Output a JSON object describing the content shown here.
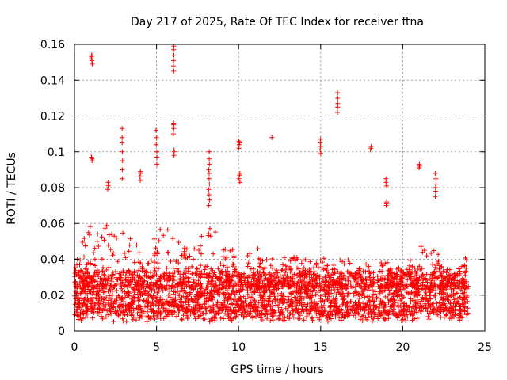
{
  "chart_data": {
    "type": "scatter",
    "title": "Day 217 of 2025, Rate Of TEC Index for receiver ftna",
    "xlabel": "GPS time / hours",
    "ylabel": "ROTI / TECUs",
    "xlim": [
      0,
      25
    ],
    "ylim": [
      0,
      0.16
    ],
    "x_ticks": [
      0,
      5,
      10,
      15,
      20,
      25
    ],
    "x_tick_labels": [
      "0",
      "5",
      "10",
      "15",
      "20",
      "25"
    ],
    "y_ticks": [
      0,
      0.02,
      0.04,
      0.06,
      0.08,
      0.1,
      0.12,
      0.14,
      0.16
    ],
    "y_tick_labels": [
      "0",
      "0.02",
      "0.04",
      "0.06",
      "0.08",
      "0.1",
      "0.12",
      "0.14",
      "0.16"
    ],
    "grid": true,
    "marker": "+",
    "color": "#ff0000",
    "bulk_band": {
      "x_range": [
        0,
        24
      ],
      "typical_range": [
        0.005,
        0.035
      ],
      "envelope": [
        [
          0.0,
          0.045
        ],
        [
          0.5,
          0.05
        ],
        [
          1.0,
          0.06
        ],
        [
          1.5,
          0.055
        ],
        [
          2.0,
          0.06
        ],
        [
          2.5,
          0.055
        ],
        [
          3.0,
          0.06
        ],
        [
          3.5,
          0.05
        ],
        [
          4.0,
          0.05
        ],
        [
          4.5,
          0.045
        ],
        [
          5.0,
          0.055
        ],
        [
          5.5,
          0.06
        ],
        [
          6.0,
          0.06
        ],
        [
          6.5,
          0.05
        ],
        [
          7.0,
          0.045
        ],
        [
          7.5,
          0.05
        ],
        [
          8.0,
          0.06
        ],
        [
          8.5,
          0.065
        ],
        [
          9.0,
          0.05
        ],
        [
          9.5,
          0.045
        ],
        [
          10.0,
          0.05
        ],
        [
          10.5,
          0.045
        ],
        [
          11.0,
          0.05
        ],
        [
          11.5,
          0.04
        ],
        [
          12.0,
          0.04
        ],
        [
          12.5,
          0.045
        ],
        [
          13.0,
          0.04
        ],
        [
          13.5,
          0.045
        ],
        [
          14.0,
          0.04
        ],
        [
          14.5,
          0.04
        ],
        [
          15.0,
          0.045
        ],
        [
          15.5,
          0.035
        ],
        [
          16.0,
          0.04
        ],
        [
          16.5,
          0.04
        ],
        [
          17.0,
          0.04
        ],
        [
          17.5,
          0.035
        ],
        [
          18.0,
          0.04
        ],
        [
          18.5,
          0.045
        ],
        [
          19.0,
          0.04
        ],
        [
          19.5,
          0.035
        ],
        [
          20.0,
          0.035
        ],
        [
          20.5,
          0.04
        ],
        [
          21.0,
          0.05
        ],
        [
          21.5,
          0.045
        ],
        [
          22.0,
          0.05
        ],
        [
          22.5,
          0.04
        ],
        [
          23.0,
          0.035
        ],
        [
          23.5,
          0.04
        ],
        [
          24.0,
          0.045
        ]
      ]
    },
    "clusters": [
      {
        "x": 1.05,
        "y": [
          0.149,
          0.151,
          0.152,
          0.153,
          0.154,
          0.154
        ]
      },
      {
        "x": 1.05,
        "y": [
          0.095,
          0.096,
          0.097,
          0.097
        ]
      },
      {
        "x": 2.05,
        "y": [
          0.079,
          0.081,
          0.082,
          0.083
        ]
      },
      {
        "x": 2.9,
        "y": [
          0.085,
          0.09,
          0.095,
          0.1,
          0.105,
          0.108,
          0.113
        ]
      },
      {
        "x": 4.0,
        "y": [
          0.084,
          0.086,
          0.088,
          0.089
        ]
      },
      {
        "x": 5.0,
        "y": [
          0.093,
          0.097,
          0.1,
          0.104,
          0.108,
          0.112
        ]
      },
      {
        "x": 6.05,
        "y": [
          0.145,
          0.148,
          0.151,
          0.154,
          0.157,
          0.159
        ]
      },
      {
        "x": 6.05,
        "y": [
          0.11,
          0.113,
          0.115,
          0.116
        ]
      },
      {
        "x": 6.05,
        "y": [
          0.098,
          0.1,
          0.101
        ]
      },
      {
        "x": 8.2,
        "y": [
          0.07,
          0.073,
          0.076,
          0.079,
          0.082,
          0.085,
          0.088,
          0.09,
          0.093,
          0.096,
          0.1
        ]
      },
      {
        "x": 10.05,
        "y": [
          0.102,
          0.104,
          0.105,
          0.106
        ]
      },
      {
        "x": 10.05,
        "y": [
          0.083,
          0.085,
          0.087,
          0.088
        ]
      },
      {
        "x": 12.0,
        "y": [
          0.108
        ]
      },
      {
        "x": 15.0,
        "y": [
          0.099,
          0.101,
          0.103,
          0.105,
          0.107
        ]
      },
      {
        "x": 16.05,
        "y": [
          0.122,
          0.125,
          0.127,
          0.13,
          0.133
        ]
      },
      {
        "x": 18.05,
        "y": [
          0.101,
          0.102,
          0.103
        ]
      },
      {
        "x": 19.0,
        "y": [
          0.07,
          0.071,
          0.072
        ]
      },
      {
        "x": 19.0,
        "y": [
          0.081,
          0.083,
          0.085
        ]
      },
      {
        "x": 21.0,
        "y": [
          0.091,
          0.092,
          0.093
        ]
      },
      {
        "x": 22.0,
        "y": [
          0.075,
          0.078,
          0.08,
          0.082,
          0.085,
          0.088
        ]
      }
    ]
  }
}
